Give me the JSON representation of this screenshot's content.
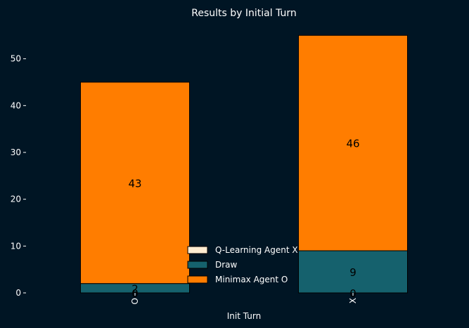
{
  "chart_data": {
    "type": "bar",
    "stacked": true,
    "title": "Results by Initial Turn",
    "xlabel": "Init Turn",
    "ylabel": "",
    "categories": [
      "O",
      "X"
    ],
    "ylim": [
      0,
      57
    ],
    "yticks": [
      0,
      10,
      20,
      30,
      40,
      50
    ],
    "series": [
      {
        "name": "Q-Learning Agent X",
        "values": [
          0,
          0
        ],
        "color": "#ffecd1",
        "labels": [
          "0",
          "0"
        ]
      },
      {
        "name": "Draw",
        "values": [
          2,
          9
        ],
        "color": "#15616d",
        "labels": [
          "2",
          "9"
        ]
      },
      {
        "name": "Minimax Agent O",
        "values": [
          43,
          46
        ],
        "color": "#ff7d00",
        "labels": [
          "43",
          "46"
        ]
      }
    ],
    "legend_position": "lower-center",
    "grid": false,
    "background": "#001524",
    "text_color": "#ffffff"
  }
}
